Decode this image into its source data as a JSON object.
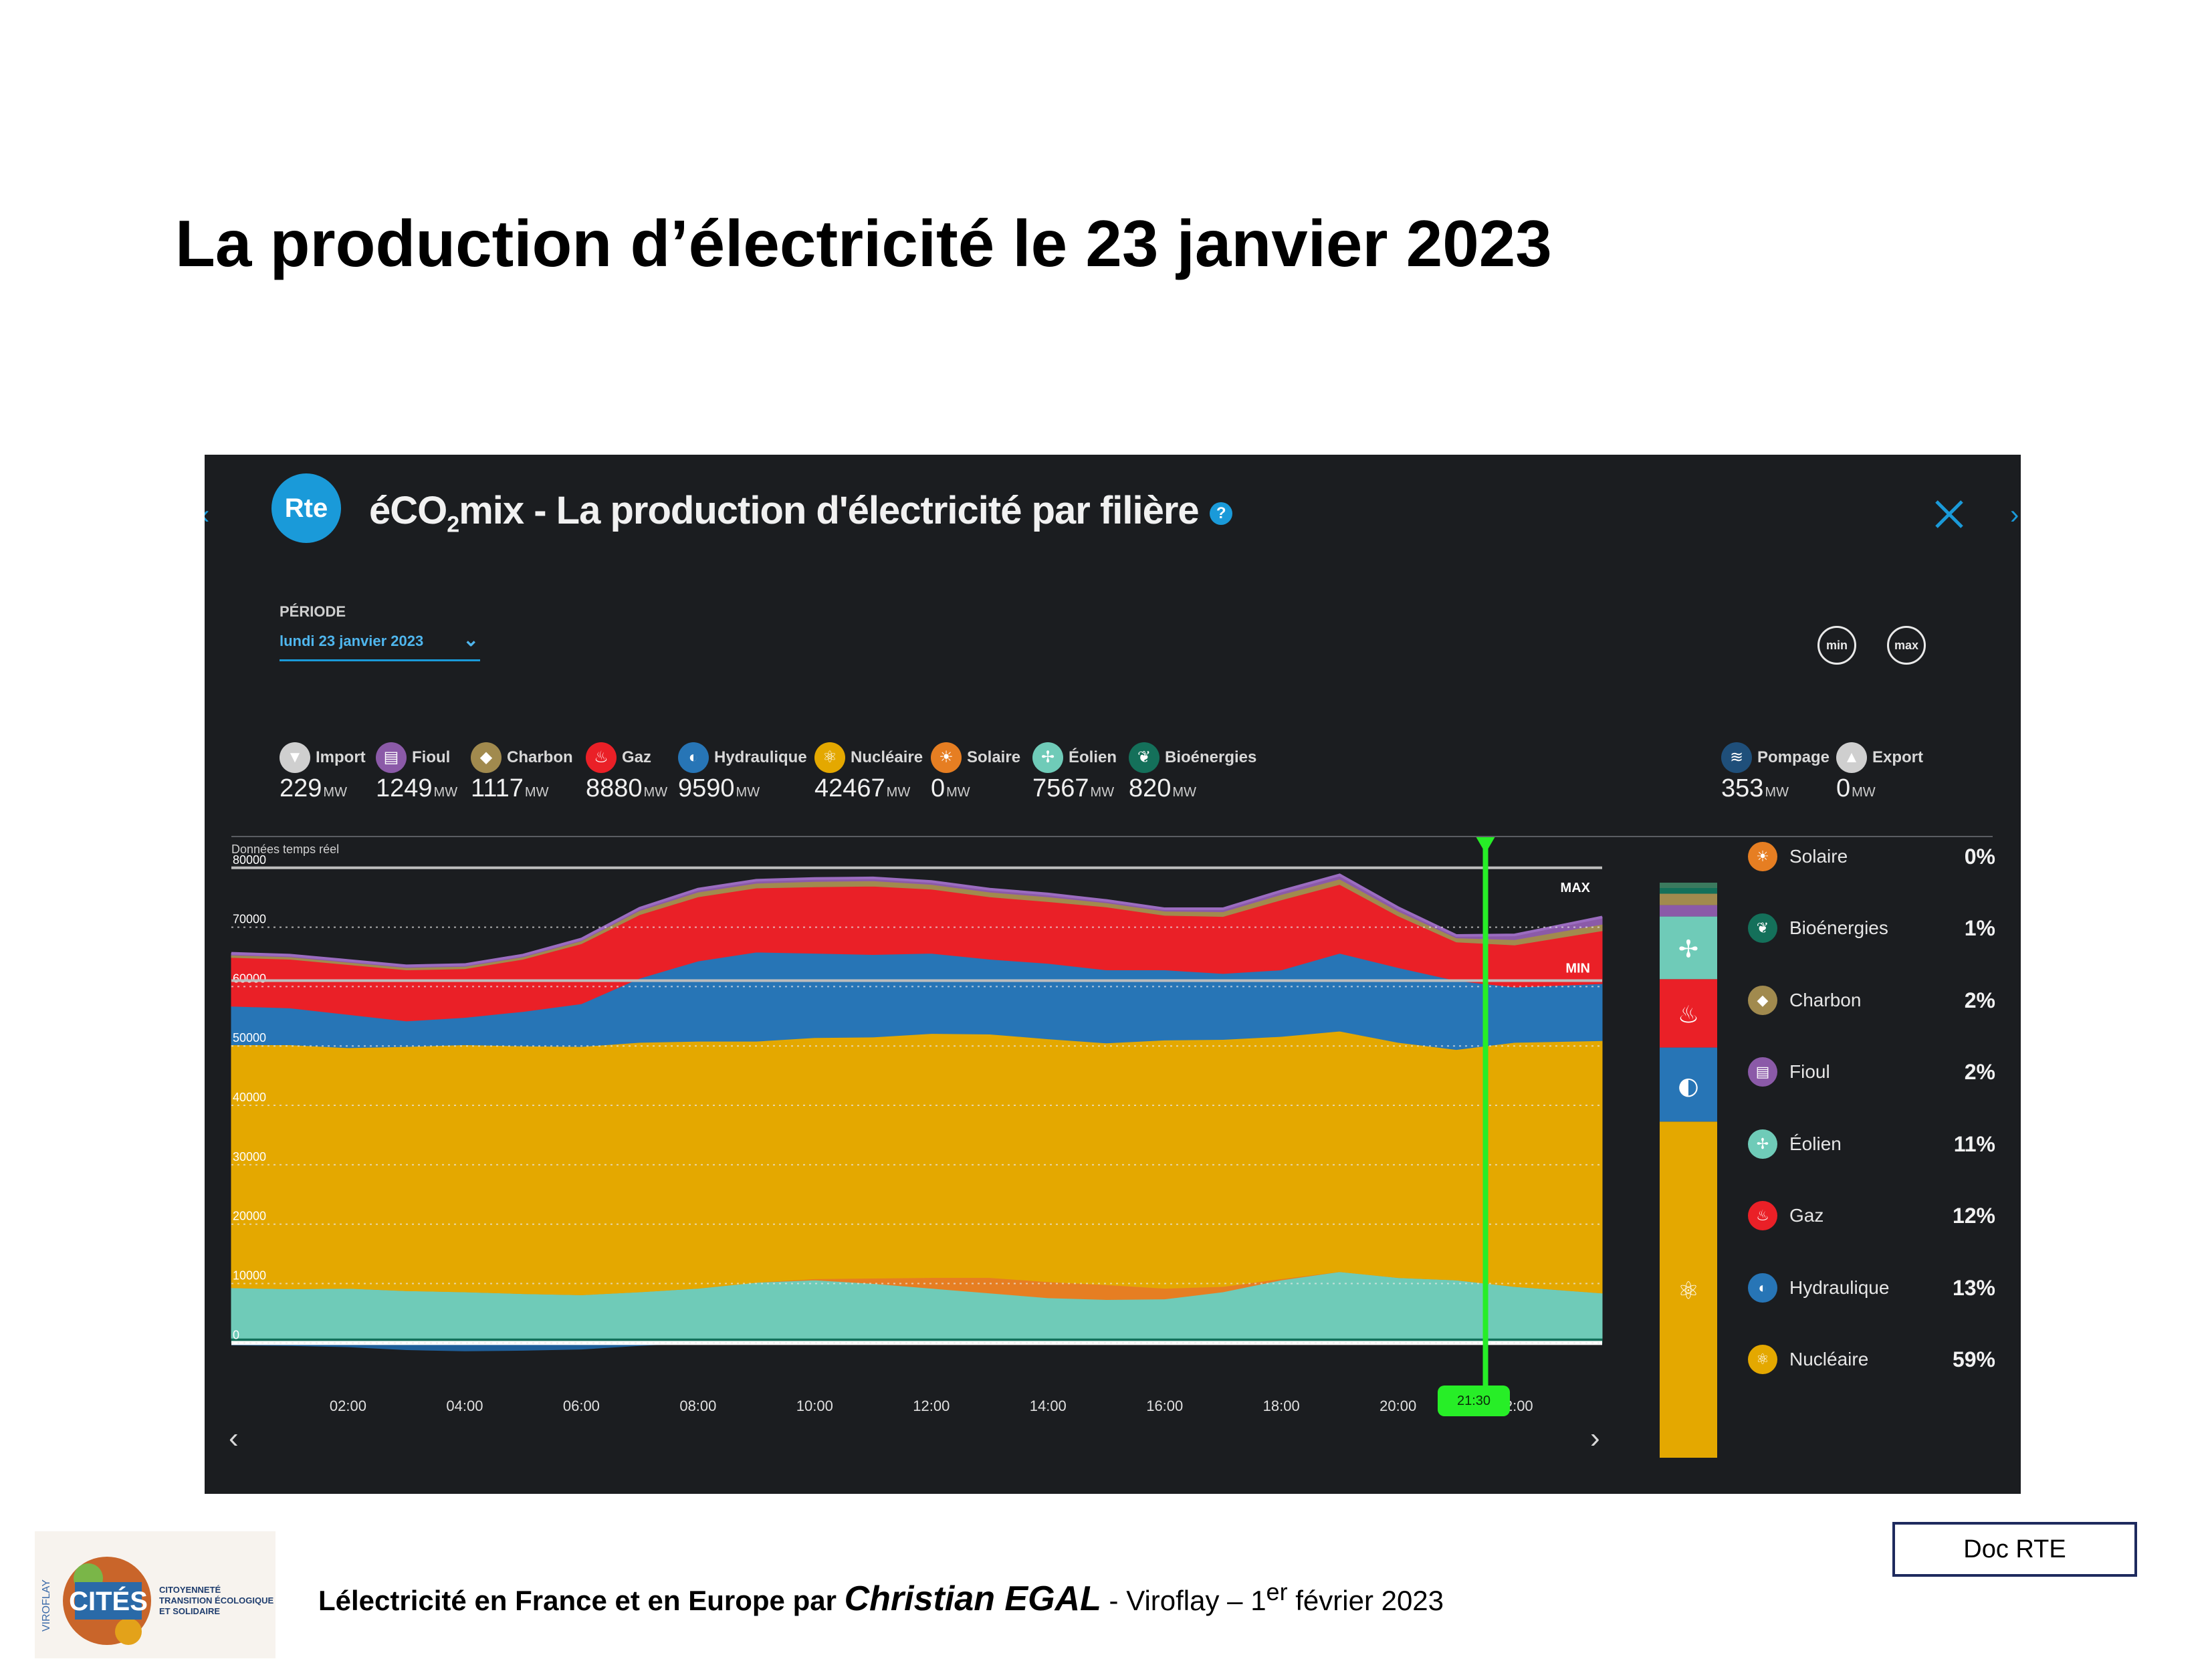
{
  "slide": {
    "title": "La production d’électricité le 23 janvier 2023",
    "doc_label": "Doc RTE",
    "footer": {
      "prefix": "Lélectricité en France et en Europe par",
      "author": "Christian EGAL",
      "place": "- Viroflay – 1",
      "sup": "er",
      "date": "février 2023"
    },
    "logo": {
      "viroflay": "VIROFLAY",
      "name": "CITÉS",
      "line1": "CITOYENNETÉ",
      "line2": "TRANSITION ÉCOLOGIQUE",
      "line3": "ET SOLIDAIRE"
    }
  },
  "app": {
    "logo_text": "Rte",
    "title_pre": "éCO",
    "title_sub": "2",
    "title_post": "mix - La production d'électricité par filière",
    "help": "?",
    "periode_label": "PÉRIODE",
    "periode_value": "lundi 23 janvier 2023",
    "min_btn": "min",
    "max_btn": "max",
    "realtime_label": "Données temps réel",
    "cursor_time": "21:30",
    "unit": "MW"
  },
  "sources": [
    {
      "name": "Import",
      "value": "229",
      "color": "#cfcfcf",
      "icon": "import-icon"
    },
    {
      "name": "Fioul",
      "value": "1249",
      "color": "#8b5aa8",
      "icon": "fioul-icon"
    },
    {
      "name": "Charbon",
      "value": "1117",
      "color": "#a18a4e",
      "icon": "charbon-icon"
    },
    {
      "name": "Gaz",
      "value": "8880",
      "color": "#ea2027",
      "icon": "gaz-icon"
    },
    {
      "name": "Hydraulique",
      "value": "9590",
      "color": "#2775b6",
      "icon": "hydraulique-icon"
    },
    {
      "name": "Nucléaire",
      "value": "42467",
      "color": "#e4a800",
      "icon": "nucleaire-icon"
    },
    {
      "name": "Solaire",
      "value": "0",
      "color": "#e67e22",
      "icon": "solaire-icon"
    },
    {
      "name": "Éolien",
      "value": "7567",
      "color": "#6fcbb8",
      "icon": "eolien-icon"
    },
    {
      "name": "Bioénergies",
      "value": "820",
      "color": "#14705a",
      "icon": "bioenergies-icon"
    },
    {
      "name": "Pompage",
      "value": "353",
      "color": "#1f4f7a",
      "icon": "pompage-icon"
    },
    {
      "name": "Export",
      "value": "0",
      "color": "#cfcfcf",
      "icon": "export-icon"
    }
  ],
  "legend": [
    {
      "name": "Solaire",
      "pct": "0%",
      "color": "#e67e22",
      "icon": "solaire-icon"
    },
    {
      "name": "Bioénergies",
      "pct": "1%",
      "color": "#14705a",
      "icon": "bioenergies-icon"
    },
    {
      "name": "Charbon",
      "pct": "2%",
      "color": "#a18a4e",
      "icon": "charbon-icon"
    },
    {
      "name": "Fioul",
      "pct": "2%",
      "color": "#8b5aa8",
      "icon": "fioul-icon"
    },
    {
      "name": "Éolien",
      "pct": "11%",
      "color": "#6fcbb8",
      "icon": "eolien-icon"
    },
    {
      "name": "Gaz",
      "pct": "12%",
      "color": "#ea2027",
      "icon": "gaz-icon"
    },
    {
      "name": "Hydraulique",
      "pct": "13%",
      "color": "#2775b6",
      "icon": "hydraulique-icon"
    },
    {
      "name": "Nucléaire",
      "pct": "59%",
      "color": "#e4a800",
      "icon": "nucleaire-icon"
    }
  ],
  "chart_data": {
    "type": "area",
    "stacked": true,
    "x": [
      0,
      1,
      2,
      3,
      4,
      5,
      6,
      7,
      8,
      9,
      10,
      11,
      12,
      13,
      14,
      15,
      16,
      17,
      18,
      19,
      20,
      21,
      22,
      23.5
    ],
    "xticks": [
      "02:00",
      "04:00",
      "06:00",
      "08:00",
      "10:00",
      "12:00",
      "14:00",
      "16:00",
      "18:00",
      "20:00",
      "22:00"
    ],
    "xtick_values": [
      2,
      4,
      6,
      8,
      10,
      12,
      14,
      16,
      18,
      20,
      22
    ],
    "yticks": [
      "0",
      "10000",
      "20000",
      "30000",
      "40000",
      "50000",
      "60000",
      "70000",
      "80000"
    ],
    "ylim": [
      -3000,
      82000
    ],
    "max_line": 80000,
    "min_line": 61000,
    "max_label": "MAX",
    "min_label": "MIN",
    "cursor_x": 21.5,
    "series": [
      {
        "name": "Bioénergies",
        "color": "#14705a",
        "values": [
          800,
          800,
          800,
          800,
          800,
          800,
          800,
          800,
          800,
          800,
          800,
          800,
          800,
          800,
          800,
          800,
          800,
          800,
          800,
          800,
          800,
          800,
          800,
          800
        ]
      },
      {
        "name": "Éolien",
        "color": "#6fcbb8",
        "values": [
          8500,
          8300,
          8400,
          8000,
          7800,
          7500,
          7300,
          7800,
          8400,
          9400,
          9800,
          9200,
          8400,
          7600,
          6800,
          6500,
          6600,
          7800,
          9800,
          11200,
          10200,
          9800,
          8700,
          7600
        ]
      },
      {
        "name": "Solaire",
        "color": "#e67e22",
        "values": [
          0,
          0,
          0,
          0,
          0,
          0,
          0,
          0,
          0,
          0,
          200,
          900,
          1800,
          2600,
          2700,
          2500,
          1800,
          900,
          200,
          0,
          0,
          0,
          0,
          0
        ]
      },
      {
        "name": "Nucléaire",
        "color": "#e4a800",
        "values": [
          40900,
          41100,
          40500,
          41100,
          41600,
          41700,
          41800,
          42000,
          41600,
          40600,
          40600,
          40600,
          41100,
          41000,
          40900,
          40700,
          41800,
          41600,
          40800,
          40500,
          39600,
          38800,
          41100,
          42500
        ]
      },
      {
        "name": "Hydraulique",
        "color": "#2775b6",
        "values": [
          6500,
          6200,
          5600,
          4300,
          4600,
          5800,
          7200,
          10800,
          13500,
          15000,
          14200,
          13900,
          13500,
          12600,
          12700,
          12300,
          11800,
          11100,
          11200,
          13100,
          12600,
          11600,
          9300,
          9600
        ]
      },
      {
        "name": "Gaz",
        "color": "#ea2027",
        "values": [
          8200,
          8200,
          8400,
          8600,
          8200,
          8800,
          10100,
          10700,
          10800,
          10800,
          11200,
          11500,
          10800,
          10500,
          10400,
          10600,
          9200,
          9600,
          11800,
          11600,
          8700,
          6500,
          7100,
          8900
        ]
      },
      {
        "name": "Charbon",
        "color": "#a18a4e",
        "values": [
          400,
          400,
          400,
          400,
          400,
          400,
          500,
          700,
          800,
          800,
          900,
          900,
          800,
          800,
          800,
          700,
          700,
          800,
          900,
          900,
          800,
          700,
          900,
          1100
        ]
      },
      {
        "name": "Fioul",
        "color": "#8b5aa8",
        "values": [
          300,
          300,
          300,
          300,
          300,
          300,
          300,
          400,
          500,
          500,
          500,
          500,
          500,
          500,
          500,
          400,
          400,
          500,
          600,
          700,
          600,
          400,
          800,
          1200
        ]
      }
    ],
    "import_values": [
      -400,
      -500,
      -700,
      -1200,
      -1400,
      -1300,
      -1100,
      -500,
      0,
      0,
      0,
      0,
      0,
      0,
      0,
      0,
      0,
      0,
      0,
      0,
      0,
      0,
      0,
      0
    ],
    "stack_bar": [
      {
        "name": "Nucléaire",
        "color": "#e4a800",
        "value": 59,
        "icon": "nucleaire-icon"
      },
      {
        "name": "Hydraulique",
        "color": "#2775b6",
        "value": 13,
        "icon": "hydraulique-icon"
      },
      {
        "name": "Gaz",
        "color": "#ea2027",
        "value": 12,
        "icon": "gaz-icon"
      },
      {
        "name": "Éolien",
        "color": "#6fcbb8",
        "value": 11,
        "icon": "eolien-icon"
      },
      {
        "name": "Fioul",
        "color": "#8b5aa8",
        "value": 2,
        "icon": "fioul-icon"
      },
      {
        "name": "Charbon",
        "color": "#a18a4e",
        "value": 2,
        "icon": "charbon-icon"
      },
      {
        "name": "Bioénergies",
        "color": "#14705a",
        "value": 1,
        "icon": "bioenergies-icon"
      }
    ]
  }
}
